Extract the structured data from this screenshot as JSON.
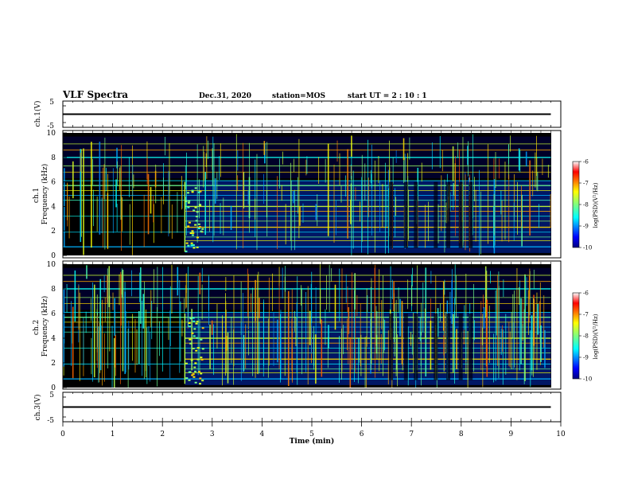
{
  "header": {
    "title": "VLF Spectra",
    "date": "Dec.31, 2020",
    "station": "station=MOS",
    "start_ut": "start  UT =   2 : 10 : 1"
  },
  "chart_data": [
    {
      "type": "line",
      "ylabel": "ch.1(V)",
      "ylim": [
        -5,
        5
      ],
      "y_ticks": [
        "5",
        "-5"
      ],
      "x": [
        0,
        10
      ],
      "values": [
        0,
        0
      ]
    },
    {
      "type": "heatmap",
      "ylabel_lines": [
        "ch.1",
        "Frequency (kHz)"
      ],
      "ylim": [
        0,
        10
      ],
      "y_ticks": [
        "10",
        "8",
        "6",
        "4",
        "2",
        "0"
      ],
      "xlim": [
        0,
        9.8
      ],
      "colorbar": {
        "label": "log(PSD)(V²/Hz)",
        "range": [
          -10,
          -6
        ],
        "ticks": [
          "-6",
          "-7",
          "-8",
          "-9",
          "-10"
        ]
      }
    },
    {
      "type": "heatmap",
      "ylabel_lines": [
        "ch.2",
        "Frequency (kHz)"
      ],
      "ylim": [
        0,
        10
      ],
      "y_ticks": [
        "10",
        "8",
        "6",
        "4",
        "2",
        "0"
      ],
      "xlim": [
        0,
        9.8
      ],
      "colorbar": {
        "label": "log(PSD)(V²/Hz)",
        "range": [
          -10,
          -6
        ],
        "ticks": [
          "-6",
          "-7",
          "-8",
          "-9",
          "-10"
        ]
      }
    },
    {
      "type": "line",
      "ylabel": "ch.3(V)",
      "ylim": [
        -5,
        5
      ],
      "y_ticks": [
        "5",
        "-5"
      ],
      "x": [
        0,
        10
      ],
      "values": [
        0,
        0
      ]
    }
  ],
  "x_axis": {
    "label": "Time (min)",
    "range": [
      0,
      10
    ],
    "ticks": [
      "0",
      "1",
      "2",
      "3",
      "4",
      "5",
      "6",
      "7",
      "8",
      "9",
      "10"
    ]
  }
}
